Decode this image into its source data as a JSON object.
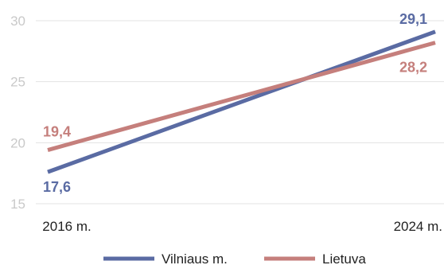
{
  "chart_data": {
    "type": "line",
    "x": [
      "2016 m.",
      "2024 m."
    ],
    "series": [
      {
        "name": "Vilniaus m.",
        "values": [
          17.6,
          29.1
        ],
        "labels": [
          "17,6",
          "29,1"
        ],
        "color": "#5a6ba3"
      },
      {
        "name": "Lietuva",
        "values": [
          19.4,
          28.2
        ],
        "labels": [
          "19,4",
          "28,2"
        ],
        "color": "#c57f7c"
      }
    ],
    "y_ticks": [
      15,
      20,
      25,
      30
    ],
    "y_tick_labels": [
      "15",
      "20",
      "25",
      "30"
    ],
    "ylim": [
      15,
      30
    ],
    "grid": true,
    "legend": "bottom-center",
    "title": "",
    "xlabel": "",
    "ylabel": ""
  }
}
